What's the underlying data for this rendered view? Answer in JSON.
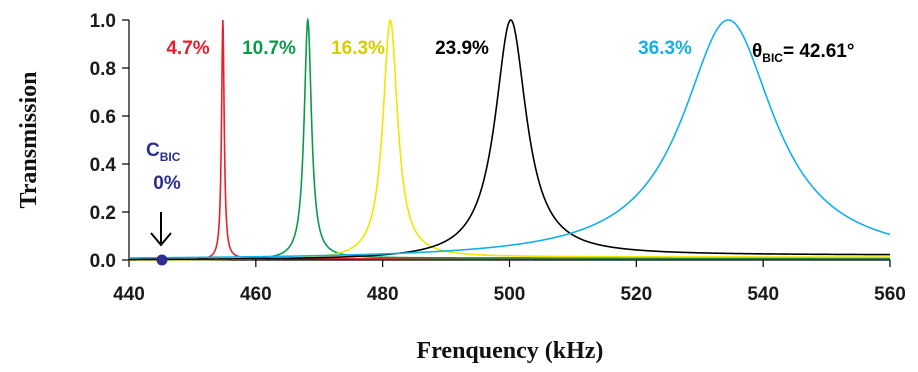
{
  "chart_data": {
    "type": "line",
    "xlabel": "Frenquency (kHz)",
    "ylabel": "Transmission",
    "xlim": [
      440,
      560
    ],
    "ylim": [
      0.0,
      1.0
    ],
    "x_ticks": [
      440,
      460,
      480,
      500,
      520,
      540,
      560
    ],
    "x_tick_labels": [
      "440",
      "460",
      "480",
      "500",
      "520",
      "540",
      "560"
    ],
    "y_ticks": [
      0.0,
      0.2,
      0.4,
      0.6,
      0.8,
      1.0
    ],
    "y_tick_labels": [
      "0.0",
      "0.2",
      "0.4",
      "0.6",
      "0.8",
      "1.0"
    ],
    "grid": false,
    "series": [
      {
        "name": "4.7%",
        "color": "#e8202a",
        "peak_x": 454.8,
        "peak_y": 1.0,
        "half_width": 0.25,
        "baseline_y": 0.005
      },
      {
        "name": "10.7%",
        "color": "#0a9a4a",
        "peak_x": 468.2,
        "peak_y": 1.0,
        "half_width": 0.7,
        "baseline_y": 0.008
      },
      {
        "name": "16.3%",
        "color": "#f2e600",
        "peak_x": 481.2,
        "peak_y": 1.0,
        "half_width": 1.4,
        "baseline_y": 0.012
      },
      {
        "name": "23.9%",
        "color": "#000000",
        "peak_x": 500.2,
        "peak_y": 1.0,
        "half_width": 3.0,
        "baseline_y": 0.02
      },
      {
        "name": "36.3%",
        "color": "#12b0ea",
        "peak_x": 534.5,
        "peak_y": 1.0,
        "half_width": 8.8,
        "baseline_y": 0.0
      }
    ],
    "annotations": {
      "cbic_main": "C",
      "cbic_sub": "BIC",
      "cbic_value": "0%",
      "cbic_point": {
        "x": 445.2,
        "y": 0.0,
        "color": "#2b2f8f"
      },
      "theta_symbol": "θ",
      "theta_sub": "BIC",
      "theta_value": "= 42.61°"
    }
  }
}
